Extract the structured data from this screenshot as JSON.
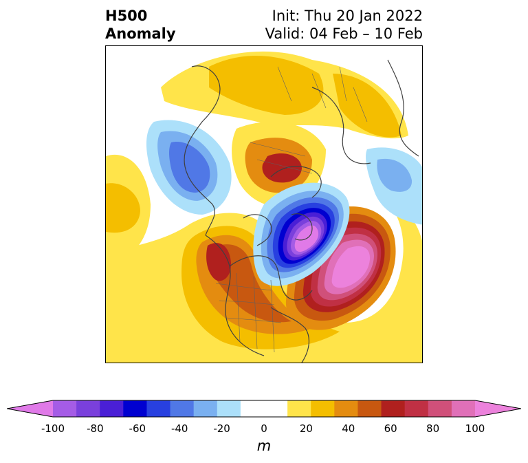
{
  "title": {
    "left_line1": "H500",
    "left_line2": "Anomaly",
    "right_line1": "Init: Thu 20 Jan 2022",
    "right_line2": "Valid: 04 Feb – 10 Feb"
  },
  "colorbar": {
    "unit": "m",
    "colors": [
      "#e07ae8",
      "#a55ce6",
      "#7a40dc",
      "#4a1fd6",
      "#0000d0",
      "#2840e0",
      "#5078e6",
      "#7ab0f0",
      "#ace0fa",
      "#ffffff",
      "#ffffff",
      "#ffe44a",
      "#f4be00",
      "#e48c10",
      "#c85810",
      "#b0201e",
      "#c03044",
      "#d0507a",
      "#e070b8",
      "#ec82dc"
    ],
    "ticks": [
      "-100",
      "-80",
      "-60",
      "-40",
      "-20",
      "0",
      "20",
      "40",
      "60",
      "80",
      "100"
    ]
  }
}
